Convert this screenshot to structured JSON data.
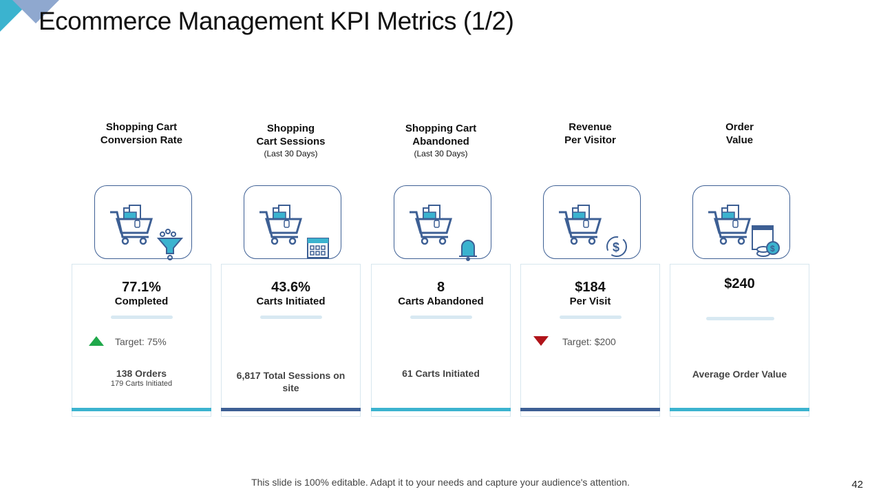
{
  "title": "Ecommerce Management KPI Metrics (1/2)",
  "colors": {
    "teal": "#3bb3cf",
    "navy": "#3d5f94",
    "up": "#1fa84a",
    "down": "#b0141a"
  },
  "kpis": [
    {
      "h1": "Shopping Cart",
      "h2": "Conversion Rate",
      "h3": "",
      "icon": "cart-funnel-icon",
      "value": "77.1%",
      "label": "Completed",
      "trend": "up",
      "target": "Target: 75%",
      "foot": "138 Orders",
      "foot_small": "179 Carts Initiated",
      "bar": "teal"
    },
    {
      "h1": "Shopping",
      "h2": "Cart Sessions",
      "h3": "(Last 30 Days)",
      "icon": "cart-calendar-icon",
      "value": "43.6%",
      "label": "Carts Initiated",
      "trend": "",
      "target": "",
      "foot": "6,817  Total Sessions on site",
      "foot_small": "",
      "bar": "navy"
    },
    {
      "h1": "Shopping Cart",
      "h2": "Abandoned",
      "h3": "(Last 30 Days)",
      "icon": "cart-bell-icon",
      "value": "8",
      "label": "Carts Abandoned",
      "trend": "",
      "target": "",
      "foot": "61 Carts Initiated",
      "foot_small": "",
      "bar": "teal"
    },
    {
      "h1": "Revenue",
      "h2": "Per Visitor",
      "h3": "",
      "icon": "cart-dollar-cycle-icon",
      "value": "$184",
      "label": "Per Visit",
      "trend": "down",
      "target": "Target: $200",
      "foot": "",
      "foot_small": "",
      "bar": "navy"
    },
    {
      "h1": "Order",
      "h2": "Value",
      "h3": "",
      "icon": "cart-invoice-coins-icon",
      "value": "$240",
      "label": "",
      "trend": "",
      "target": "",
      "foot": "Average Order Value",
      "foot_small": "",
      "bar": "teal"
    }
  ],
  "footer_note": "This slide is 100% editable. Adapt it to your needs and capture your audience's attention.",
  "page_number": "42"
}
